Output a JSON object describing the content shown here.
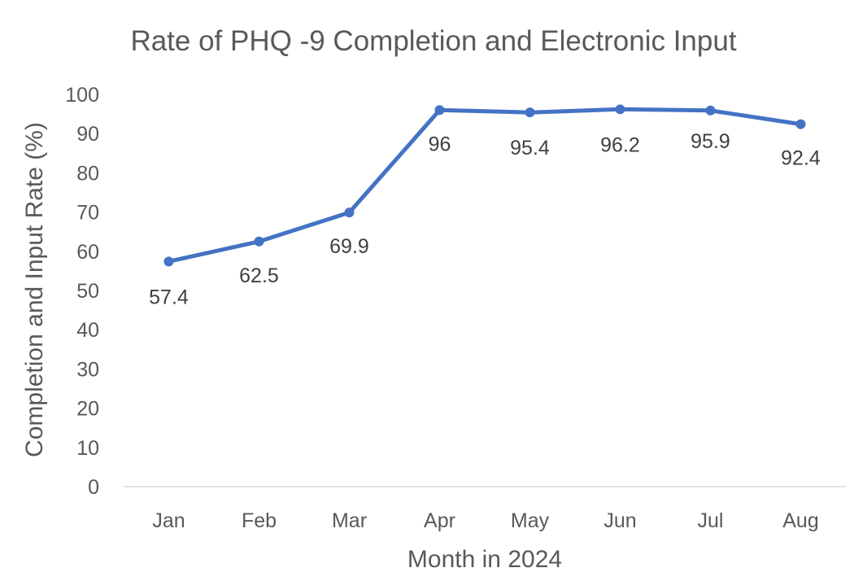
{
  "chart_data": {
    "type": "line",
    "title": "Rate of PHQ -9 Completion and Electronic Input",
    "xlabel": "Month in 2024",
    "ylabel": "Completion and Input Rate (%)",
    "categories": [
      "Jan",
      "Feb",
      "Mar",
      "Apr",
      "May",
      "Jun",
      "Jul",
      "Aug"
    ],
    "series": [
      {
        "values": [
          57.4,
          62.5,
          69.9,
          96,
          95.4,
          96.2,
          95.9,
          92.4
        ],
        "labels": [
          "57.4",
          "62.5",
          "69.9",
          "96",
          "95.4",
          "96.2",
          "95.9",
          "92.4"
        ],
        "color": "#4472C4"
      }
    ],
    "ylim": [
      0,
      100
    ],
    "yticks": [
      "0",
      "10",
      "20",
      "30",
      "40",
      "50",
      "60",
      "70",
      "80",
      "90",
      "100"
    ],
    "grid": false,
    "legend": "none"
  }
}
